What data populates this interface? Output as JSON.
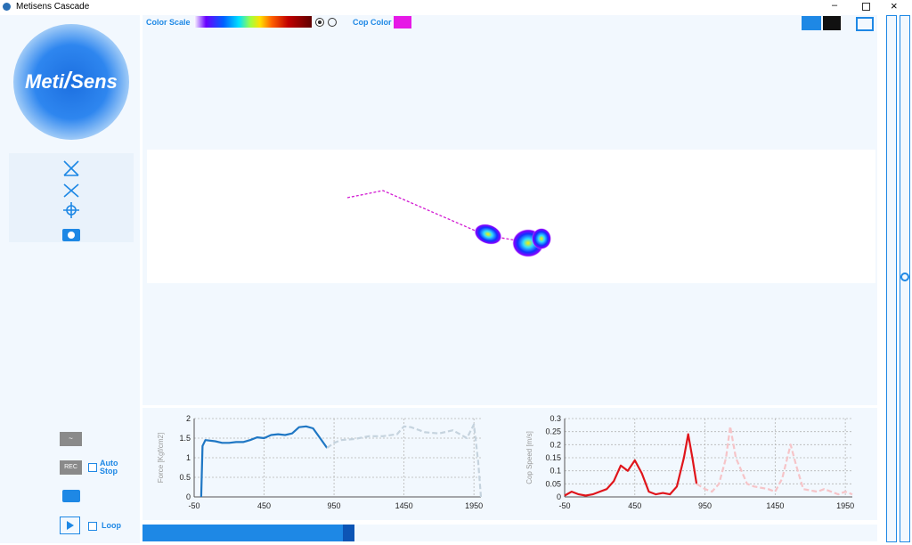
{
  "window": {
    "title": "Metisens Cascade"
  },
  "logo": {
    "text_left": "Meti",
    "text_right": "Sens"
  },
  "toolbar": {
    "color_scale_label": "Color Scale",
    "cop_color_label": "Cop Color"
  },
  "left_panel": {
    "rec_label": "REC",
    "auto_stop_label": "Auto Stop",
    "loop_label": "Loop"
  },
  "chart_data": [
    {
      "type": "line",
      "ylabel": "Force [Kgf/cm2]",
      "xlim": [
        -50,
        2000
      ],
      "ylim": [
        0,
        2
      ],
      "xticks": [
        -50,
        450,
        950,
        1450,
        1950
      ],
      "yticks": [
        0,
        0.5,
        1,
        1.5,
        2
      ],
      "grid": true,
      "series": [
        {
          "color": "#1f77c4",
          "style": "solid",
          "x": [
            0,
            10,
            30,
            100,
            150,
            200,
            250,
            300,
            350,
            400,
            450,
            500,
            550,
            600,
            650,
            700,
            750,
            800,
            850,
            900
          ],
          "values": [
            0,
            1.3,
            1.45,
            1.42,
            1.38,
            1.38,
            1.4,
            1.4,
            1.45,
            1.52,
            1.5,
            1.58,
            1.6,
            1.58,
            1.62,
            1.78,
            1.8,
            1.75,
            1.5,
            1.25
          ]
        },
        {
          "color": "#c5d3de",
          "style": "dashed",
          "x": [
            900,
            950,
            1000,
            1100,
            1200,
            1300,
            1400,
            1450,
            1500,
            1600,
            1700,
            1800,
            1850,
            1900,
            1950,
            1980,
            2000
          ],
          "values": [
            1.25,
            1.38,
            1.45,
            1.48,
            1.55,
            1.55,
            1.6,
            1.8,
            1.78,
            1.65,
            1.62,
            1.7,
            1.6,
            1.5,
            1.85,
            0.9,
            0
          ]
        }
      ]
    },
    {
      "type": "line",
      "ylabel": "Cop Speed [m/s]",
      "xlim": [
        -50,
        2000
      ],
      "ylim": [
        0,
        0.3
      ],
      "xticks": [
        -50,
        450,
        950,
        1450,
        1950
      ],
      "yticks": [
        0,
        0.05,
        0.1,
        0.15,
        0.2,
        0.25,
        0.3
      ],
      "grid": true,
      "series": [
        {
          "color": "#e0151b",
          "style": "solid",
          "x": [
            -50,
            0,
            50,
            100,
            150,
            200,
            250,
            300,
            350,
            400,
            450,
            500,
            550,
            600,
            650,
            700,
            750,
            800,
            830,
            860,
            890
          ],
          "values": [
            0.005,
            0.02,
            0.01,
            0.005,
            0.01,
            0.02,
            0.03,
            0.06,
            0.12,
            0.1,
            0.14,
            0.09,
            0.02,
            0.01,
            0.015,
            0.01,
            0.04,
            0.15,
            0.24,
            0.15,
            0.05
          ]
        },
        {
          "color": "#f6c4c8",
          "style": "dashed",
          "x": [
            890,
            950,
            1000,
            1050,
            1100,
            1130,
            1170,
            1250,
            1300,
            1400,
            1450,
            1500,
            1560,
            1600,
            1650,
            1750,
            1800,
            1900,
            1950,
            2000
          ],
          "values": [
            0.05,
            0.03,
            0.02,
            0.05,
            0.15,
            0.27,
            0.15,
            0.05,
            0.04,
            0.03,
            0.02,
            0.07,
            0.2,
            0.12,
            0.03,
            0.02,
            0.03,
            0.01,
            0.02,
            0.01
          ]
        }
      ]
    }
  ]
}
